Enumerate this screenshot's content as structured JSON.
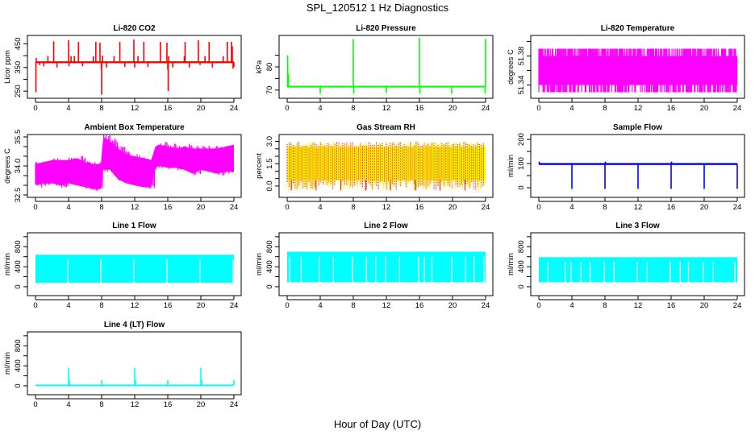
{
  "figure": {
    "title": "SPL_120512  1 Hz Diagnostics",
    "xlabel": "Hour of Day (UTC)"
  },
  "chart_data": [
    {
      "type": "line",
      "title": "Li-820 CO2",
      "xlabel": "",
      "ylabel": "Licor ppm",
      "xlim": [
        0,
        24
      ],
      "ylim": [
        230,
        475
      ],
      "xticks": [
        0,
        4,
        8,
        12,
        16,
        20,
        24
      ],
      "yticks": [
        250,
        350,
        450
      ],
      "ytick_labels": [
        "250",
        "350",
        "450"
      ],
      "ytick_minor": [
        300,
        400
      ],
      "color": "#ff0000",
      "style": "baseline-spikes",
      "baseline": 372,
      "band": [
        368,
        376
      ],
      "spikes": [
        [
          0.05,
          245
        ],
        [
          0.08,
          390
        ],
        [
          0.5,
          360
        ],
        [
          1.0,
          355
        ],
        [
          1.5,
          398
        ],
        [
          2.2,
          460
        ],
        [
          2.6,
          350
        ],
        [
          3.3,
          375
        ],
        [
          4.0,
          465
        ],
        [
          4.05,
          355
        ],
        [
          4.3,
          398
        ],
        [
          4.7,
          398
        ],
        [
          5.2,
          458
        ],
        [
          5.7,
          355
        ],
        [
          6.4,
          375
        ],
        [
          7.0,
          398
        ],
        [
          7.3,
          458
        ],
        [
          7.8,
          455
        ],
        [
          7.95,
          345
        ],
        [
          8.0,
          235
        ],
        [
          8.1,
          400
        ],
        [
          8.6,
          350
        ],
        [
          9.5,
          398
        ],
        [
          10.2,
          458
        ],
        [
          10.8,
          352
        ],
        [
          11.5,
          375
        ],
        [
          11.9,
          468
        ],
        [
          12.0,
          350
        ],
        [
          12.4,
          398
        ],
        [
          13.1,
          458
        ],
        [
          13.6,
          352
        ],
        [
          14.4,
          375
        ],
        [
          15.1,
          458
        ],
        [
          15.5,
          370
        ],
        [
          15.9,
          455
        ],
        [
          16.0,
          340
        ],
        [
          16.05,
          250
        ],
        [
          16.1,
          398
        ],
        [
          16.6,
          350
        ],
        [
          17.4,
          375
        ],
        [
          18.0,
          398
        ],
        [
          18.1,
          458
        ],
        [
          18.6,
          350
        ],
        [
          19.2,
          375
        ],
        [
          19.7,
          465
        ],
        [
          19.9,
          360
        ],
        [
          20.5,
          398
        ],
        [
          21.0,
          458
        ],
        [
          21.4,
          350
        ],
        [
          22.0,
          375
        ],
        [
          22.7,
          398
        ],
        [
          23.2,
          458
        ],
        [
          23.7,
          458
        ],
        [
          23.8,
          440
        ],
        [
          23.9,
          345
        ],
        [
          24.0,
          352
        ]
      ]
    },
    {
      "type": "line",
      "title": "Li-820 Pressure",
      "xlabel": "",
      "ylabel": "kPa",
      "xlim": [
        0,
        24
      ],
      "ylim": [
        67.5,
        92.5
      ],
      "xticks": [
        0,
        4,
        8,
        12,
        16,
        20,
        24
      ],
      "yticks": [
        70,
        80
      ],
      "ytick_labels": [
        "70",
        "80"
      ],
      "ytick_minor": [
        75,
        85
      ],
      "color": "#00ff00",
      "style": "baseline-spikes",
      "baseline": 71.5,
      "band": [
        71.2,
        71.8
      ],
      "spikes": [
        [
          0.05,
          85
        ],
        [
          0.15,
          77
        ],
        [
          4.0,
          68.5
        ],
        [
          8.0,
          92
        ],
        [
          8.05,
          68.5
        ],
        [
          12.0,
          68.8
        ],
        [
          16.0,
          92.5
        ],
        [
          16.05,
          68.5
        ],
        [
          19.9,
          68.5
        ],
        [
          24.0,
          92
        ],
        [
          23.95,
          68.5
        ]
      ]
    },
    {
      "type": "line",
      "title": "Li-820 Temperature",
      "xlabel": "",
      "ylabel": "degrees C",
      "xlim": [
        0,
        24
      ],
      "ylim": [
        51.325,
        51.405
      ],
      "xticks": [
        0,
        4,
        8,
        12,
        16,
        20,
        24
      ],
      "yticks": [
        51.34,
        51.38
      ],
      "ytick_labels": [
        "51.34",
        "51.38"
      ],
      "ytick_minor": [
        51.36,
        51.4
      ],
      "color": "#ff00ff",
      "style": "quantized-band",
      "levels": [
        51.33,
        51.36,
        51.39
      ]
    },
    {
      "type": "line",
      "title": "Ambient Box Temperature",
      "xlabel": "",
      "ylabel": "degrees C",
      "xlim": [
        0,
        24
      ],
      "ylim": [
        32.5,
        35.5
      ],
      "xticks": [
        0,
        4,
        8,
        12,
        16,
        20,
        24
      ],
      "yticks": [
        32.5,
        34.0,
        35.5
      ],
      "ytick_labels": [
        "32.5",
        "34.0",
        "35.5"
      ],
      "ytick_minor": [
        33.0,
        33.5,
        34.5,
        35.0
      ],
      "color": "#ff00ff",
      "style": "envelope",
      "envelope": [
        [
          0,
          33.0,
          34.1
        ],
        [
          1,
          33.1,
          34.2
        ],
        [
          2,
          33.1,
          34.3
        ],
        [
          3,
          33.0,
          34.3
        ],
        [
          4,
          33.1,
          34.3
        ],
        [
          5,
          33.0,
          34.4
        ],
        [
          6,
          32.9,
          34.2
        ],
        [
          7,
          32.8,
          34.1
        ],
        [
          7.9,
          32.8,
          34.1
        ],
        [
          8.2,
          33.8,
          35.5
        ],
        [
          9,
          33.8,
          35.3
        ],
        [
          10,
          33.3,
          34.9
        ],
        [
          11,
          33.1,
          34.6
        ],
        [
          12,
          33.0,
          34.5
        ],
        [
          13,
          32.9,
          34.4
        ],
        [
          14,
          32.9,
          34.3
        ],
        [
          14.5,
          33.9,
          35.0
        ],
        [
          15,
          34.0,
          35.1
        ],
        [
          16,
          33.9,
          35.0
        ],
        [
          17,
          33.9,
          34.9
        ],
        [
          18,
          33.8,
          35.0
        ],
        [
          19,
          33.6,
          34.9
        ],
        [
          20,
          33.8,
          34.9
        ],
        [
          21,
          33.7,
          34.9
        ],
        [
          22,
          33.6,
          34.9
        ],
        [
          23,
          33.7,
          35.0
        ],
        [
          24,
          33.7,
          35.1
        ]
      ]
    },
    {
      "type": "line",
      "title": "Gas Stream RH",
      "xlabel": "",
      "ylabel": "percent",
      "xlim": [
        0,
        24
      ],
      "ylim": [
        -0.6,
        3.3
      ],
      "xticks": [
        0,
        4,
        8,
        12,
        16,
        20,
        24
      ],
      "yticks": [
        0.0,
        1.5,
        3.0
      ],
      "ytick_labels": [
        "0.0",
        "1.5",
        "3.0"
      ],
      "ytick_minor": [
        0.5,
        1.0,
        2.0,
        2.5
      ],
      "color": "#ff0000",
      "color2": "#ffff00",
      "style": "noise-band",
      "band": [
        0.4,
        2.6
      ],
      "extremes": [
        -0.3,
        3.1
      ]
    },
    {
      "type": "line",
      "title": "Sample Flow",
      "xlabel": "",
      "ylabel": "ml/min",
      "xlim": [
        0,
        24
      ],
      "ylim": [
        -30,
        210
      ],
      "xticks": [
        0,
        4,
        8,
        12,
        16,
        20,
        24
      ],
      "yticks": [
        0,
        100,
        200
      ],
      "ytick_labels": [
        "0",
        "100",
        "200"
      ],
      "ytick_minor": [
        50,
        150
      ],
      "color": "#0000ff",
      "style": "baseline-spikes",
      "baseline": 98,
      "band": [
        94,
        102
      ],
      "spikes": [
        [
          0.05,
          108
        ],
        [
          4.0,
          -5
        ],
        [
          8.0,
          -5
        ],
        [
          8.05,
          108
        ],
        [
          12.0,
          -5
        ],
        [
          16.0,
          -5
        ],
        [
          16.05,
          108
        ],
        [
          20.0,
          -5
        ],
        [
          24.0,
          -5
        ]
      ]
    },
    {
      "type": "line",
      "title": "Line 1 Flow",
      "xlabel": "",
      "ylabel": "ml/min",
      "xlim": [
        0,
        24
      ],
      "ylim": [
        -130,
        1030
      ],
      "xticks": [
        0,
        4,
        8,
        12,
        16,
        20,
        24
      ],
      "yticks": [
        0,
        400,
        800
      ],
      "ytick_labels": [
        "0",
        "400",
        "800"
      ],
      "ytick_minor": [
        200,
        600,
        1000
      ],
      "color": "#00ffff",
      "style": "block",
      "band": [
        80,
        640
      ],
      "gaps": [
        3.9,
        7.9,
        11.9,
        15.9,
        19.9,
        23.9
      ]
    },
    {
      "type": "line",
      "title": "Line 2 Flow",
      "xlabel": "",
      "ylabel": "ml/min",
      "xlim": [
        0,
        24
      ],
      "ylim": [
        -130,
        1030
      ],
      "xticks": [
        0,
        4,
        8,
        12,
        16,
        20,
        24
      ],
      "yticks": [
        0,
        400,
        800
      ],
      "ytick_labels": [
        "0",
        "400",
        "800"
      ],
      "ytick_minor": [
        200,
        600,
        1000
      ],
      "color": "#00ffff",
      "style": "block",
      "band": [
        90,
        700
      ],
      "gaps": [
        0.3,
        1.7,
        3.9,
        5.6,
        7.9,
        9.6,
        10.7,
        11.9,
        13.6,
        15.9,
        16.6,
        17.5,
        19.9,
        21.6,
        22.6,
        23.8
      ]
    },
    {
      "type": "line",
      "title": "Line 3 Flow",
      "xlabel": "",
      "ylabel": "ml/min",
      "xlim": [
        0,
        24
      ],
      "ylim": [
        -130,
        1030
      ],
      "xticks": [
        0,
        4,
        8,
        12,
        16,
        20,
        24
      ],
      "yticks": [
        0,
        400,
        800
      ],
      "ytick_labels": [
        "0",
        "400",
        "800"
      ],
      "ytick_minor": [
        200,
        600,
        1000
      ],
      "color": "#00ffff",
      "style": "block",
      "band": [
        90,
        590
      ],
      "gaps": [
        1.1,
        3.2,
        3.9,
        5.1,
        6.2,
        7.9,
        9.1,
        11.9,
        13.1,
        15.9,
        17.1,
        18.1,
        19.9,
        21.1,
        23.7
      ]
    },
    {
      "type": "line",
      "title": "Line 4 (LT) Flow",
      "xlabel": "",
      "ylabel": "ml/min",
      "xlim": [
        0,
        24
      ],
      "ylim": [
        -130,
        1030
      ],
      "xticks": [
        0,
        4,
        8,
        12,
        16,
        20,
        24
      ],
      "yticks": [
        0,
        400,
        800
      ],
      "ytick_labels": [
        "0",
        "400",
        "800"
      ],
      "ytick_minor": [
        200,
        600,
        1000
      ],
      "color": "#00ffff",
      "style": "baseline-spikes",
      "baseline": 15,
      "band": [
        5,
        25
      ],
      "spikes": [
        [
          4.0,
          360
        ],
        [
          4.1,
          120
        ],
        [
          8.0,
          120
        ],
        [
          12.0,
          360
        ],
        [
          12.1,
          120
        ],
        [
          16.0,
          120
        ],
        [
          20.0,
          360
        ],
        [
          20.1,
          120
        ],
        [
          24.0,
          120
        ]
      ]
    }
  ]
}
